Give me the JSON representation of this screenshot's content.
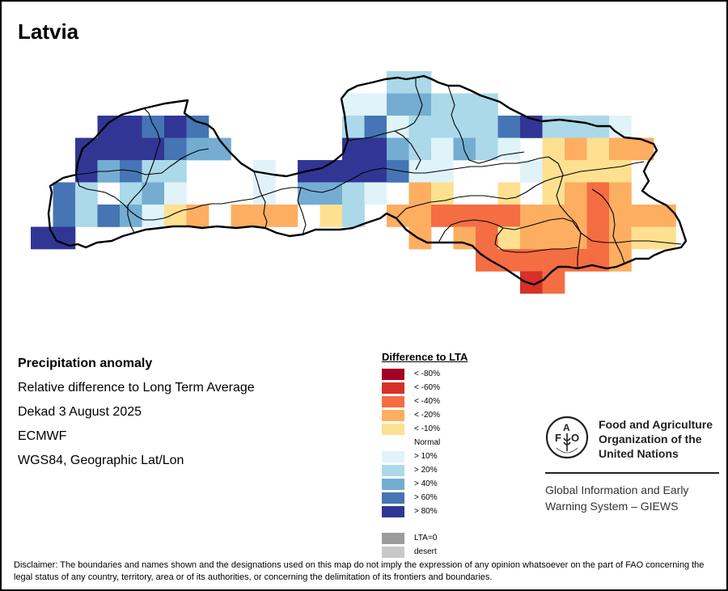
{
  "title": "Latvia",
  "info": {
    "line1": "Precipitation anomaly",
    "line2": "Relative difference to Long Term Average",
    "line3": "Dekad 3 August 2025",
    "line4": "ECMWF",
    "line5": "WGS84, Geographic Lat/Lon"
  },
  "legend": {
    "title": "Difference to LTA",
    "classes": [
      {
        "code": "n80",
        "label": "< -80%",
        "color": "#a50026"
      },
      {
        "code": "n60",
        "label": "< -60%",
        "color": "#d73027"
      },
      {
        "code": "n40",
        "label": "< -40%",
        "color": "#f46d43"
      },
      {
        "code": "n20",
        "label": "< -20%",
        "color": "#fdae61"
      },
      {
        "code": "n10",
        "label": "< -10%",
        "color": "#fee090"
      },
      {
        "code": "normal",
        "label": "Normal",
        "color": "#ffffff"
      },
      {
        "code": "p10",
        "label": "> 10%",
        "color": "#e0f3f8"
      },
      {
        "code": "p20",
        "label": "> 20%",
        "color": "#abd9e9"
      },
      {
        "code": "p40",
        "label": "> 40%",
        "color": "#74add1"
      },
      {
        "code": "p60",
        "label": "> 60%",
        "color": "#4575b4"
      },
      {
        "code": "p80",
        "label": "> 80%",
        "color": "#313695"
      }
    ],
    "extra": [
      {
        "code": "lta0",
        "label": "LTA=0",
        "color": "#9b9b9b"
      },
      {
        "code": "desert",
        "label": "desert",
        "color": "#c8c8c8"
      }
    ]
  },
  "logo": {
    "org_line1": "Food and Agriculture",
    "org_line2": "Organization of the",
    "org_line3": "United Nations",
    "letters": [
      "F",
      "A",
      "O"
    ],
    "motto": "FIAT PANIS",
    "system_line1": "Global Information and Early",
    "system_line2": "Warning System – GIEWS"
  },
  "disclaimer": "Disclaimer: The boundaries and names shown and the designations used on this map do not imply the expression of any opinion whatsoever on the part of FAO concerning the legal status of any country, territory, area or of its authorities, or concerning the delimitation of its frontiers and boundaries.",
  "map_grid": {
    "description": "Precipitation anomaly class per grid cell, rows north→south, columns west→east",
    "rows": [
      {
        "row": 0,
        "cells": {
          "16": "p20",
          "17": "p20"
        }
      },
      {
        "row": 1,
        "cells": {
          "14": "p10",
          "15": "p10",
          "16": "p40",
          "17": "p40",
          "18": "p20",
          "19": "p20",
          "20": "p20"
        }
      },
      {
        "row": 2,
        "cells": {
          "3": "p80",
          "4": "p80",
          "5": "p60",
          "6": "p80",
          "7": "p60",
          "14": "p20",
          "15": "p60",
          "16": "p10",
          "17": "p20",
          "18": "p20",
          "19": "p20",
          "20": "p20",
          "21": "p60",
          "22": "p80",
          "23": "p20",
          "24": "p20",
          "25": "p20",
          "26": "p10"
        }
      },
      {
        "row": 3,
        "cells": {
          "2": "p80",
          "3": "p80",
          "4": "p80",
          "5": "p80",
          "6": "p60",
          "7": "p40",
          "8": "p40",
          "14": "p80",
          "15": "p80",
          "16": "p40",
          "17": "p20",
          "18": "p10",
          "19": "p40",
          "20": "p20",
          "21": "p10",
          "23": "n10",
          "24": "n20",
          "25": "n10",
          "26": "n20",
          "27": "n20"
        }
      },
      {
        "row": 4,
        "cells": {
          "2": "p80",
          "3": "p40",
          "4": "p60",
          "5": "p20",
          "6": "p20",
          "10": "p10",
          "12": "p80",
          "13": "p80",
          "14": "p80",
          "15": "p80",
          "16": "p60",
          "17": "p10",
          "18": "p10",
          "22": "p10",
          "23": "n10",
          "24": "n10",
          "25": "n10",
          "26": "n10"
        }
      },
      {
        "row": 5,
        "cells": {
          "1": "p60",
          "2": "p20",
          "4": "p20",
          "5": "p40",
          "6": "p10",
          "10": "p10",
          "12": "p40",
          "13": "p40",
          "14": "p20",
          "15": "p10",
          "17": "n20",
          "18": "n10",
          "21": "n10",
          "23": "n10",
          "24": "n20",
          "25": "n40",
          "26": "n20"
        }
      },
      {
        "row": 6,
        "cells": {
          "1": "p60",
          "2": "p20",
          "3": "p60",
          "4": "p40",
          "5": "p10",
          "6": "n10",
          "7": "n20",
          "9": "n20",
          "10": "n20",
          "11": "n20",
          "13": "n10",
          "14": "p20",
          "16": "n20",
          "17": "n20",
          "18": "n40",
          "19": "n40",
          "20": "n40",
          "21": "n40",
          "22": "n20",
          "23": "n20",
          "24": "n20",
          "25": "n40",
          "26": "n20",
          "27": "n20",
          "28": "n20"
        }
      },
      {
        "row": 7,
        "cells": {
          "0": "p80",
          "1": "p80",
          "17": "n20",
          "19": "n20",
          "20": "n40",
          "21": "n10",
          "22": "n20",
          "23": "n20",
          "24": "n20",
          "25": "n40",
          "26": "n20",
          "27": "n10",
          "28": "n10"
        }
      },
      {
        "row": 8,
        "cells": {
          "20": "n40",
          "21": "n40",
          "22": "n40",
          "23": "n40",
          "24": "n40",
          "25": "n40",
          "26": "n20"
        }
      },
      {
        "row": 9,
        "cells": {
          "22": "n60",
          "23": "n40"
        }
      }
    ]
  }
}
